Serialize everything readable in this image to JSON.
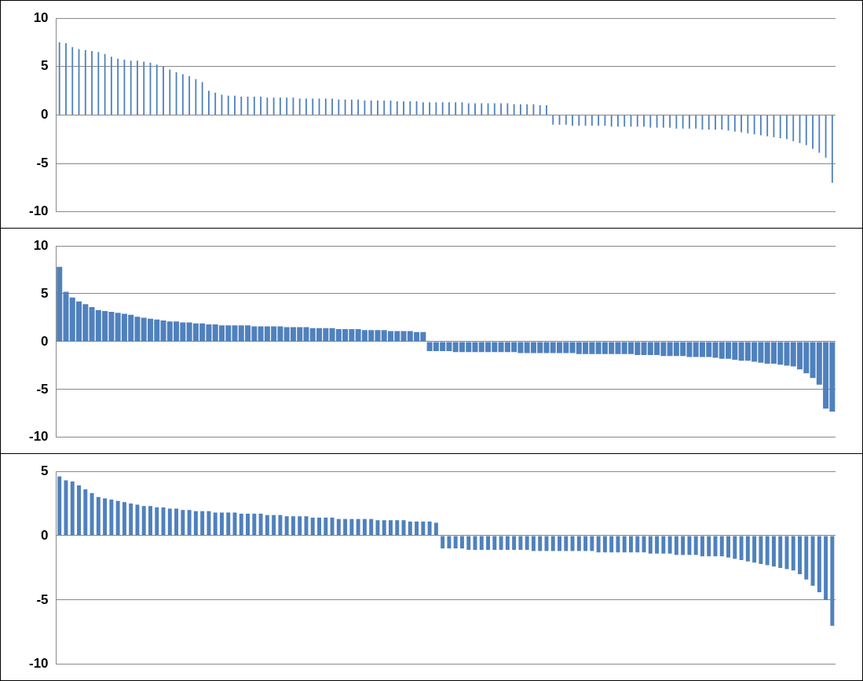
{
  "chart_data": [
    {
      "type": "bar",
      "categories": [
        null,
        null,
        null,
        null,
        null,
        null,
        null,
        null,
        null,
        null,
        null,
        null,
        null,
        null,
        null,
        null,
        null,
        null,
        null,
        null,
        null,
        null,
        null,
        null,
        null,
        null,
        null,
        null,
        null,
        null,
        null,
        null,
        null,
        null,
        null,
        null,
        null,
        null,
        null,
        null,
        null,
        null,
        null,
        null,
        null,
        null,
        null,
        null,
        null,
        null,
        null,
        null,
        null,
        null,
        null,
        null,
        null,
        null,
        null,
        null,
        null,
        null,
        null,
        null,
        null,
        null,
        null,
        null,
        null,
        null,
        null,
        null,
        null,
        null,
        null,
        null,
        null,
        null,
        null,
        null,
        null,
        null,
        null,
        null,
        null,
        null,
        null,
        null,
        null,
        null,
        null,
        null,
        null,
        null,
        null,
        null,
        null,
        null,
        null,
        null,
        null,
        null,
        null,
        null,
        null,
        null,
        null,
        null,
        null,
        null,
        null,
        null,
        null,
        null,
        null,
        null,
        null,
        null,
        null,
        null
      ],
      "values": [
        7.5,
        7.4,
        7.0,
        6.8,
        6.7,
        6.6,
        6.5,
        6.3,
        6.0,
        5.8,
        5.7,
        5.6,
        5.6,
        5.5,
        5.4,
        5.2,
        5.0,
        4.7,
        4.4,
        4.2,
        4.0,
        3.7,
        3.4,
        2.5,
        2.3,
        2.1,
        2.0,
        2.0,
        1.9,
        1.9,
        1.9,
        1.9,
        1.8,
        1.8,
        1.8,
        1.8,
        1.8,
        1.7,
        1.7,
        1.7,
        1.7,
        1.7,
        1.7,
        1.6,
        1.6,
        1.6,
        1.6,
        1.5,
        1.5,
        1.5,
        1.5,
        1.5,
        1.4,
        1.4,
        1.4,
        1.4,
        1.3,
        1.3,
        1.3,
        1.3,
        1.3,
        1.3,
        1.3,
        1.2,
        1.2,
        1.2,
        1.2,
        1.2,
        1.2,
        1.2,
        1.1,
        1.1,
        1.1,
        1.1,
        1.0,
        1.0,
        -1.0,
        -1.0,
        -1.0,
        -1.1,
        -1.1,
        -1.1,
        -1.1,
        -1.1,
        -1.1,
        -1.2,
        -1.2,
        -1.2,
        -1.2,
        -1.2,
        -1.2,
        -1.3,
        -1.3,
        -1.3,
        -1.3,
        -1.4,
        -1.4,
        -1.4,
        -1.4,
        -1.5,
        -1.5,
        -1.5,
        -1.5,
        -1.6,
        -1.7,
        -1.8,
        -1.9,
        -2.0,
        -2.1,
        -2.2,
        -2.3,
        -2.4,
        -2.5,
        -2.7,
        -2.9,
        -3.1,
        -3.5,
        -3.9,
        -4.4,
        -7.0
      ],
      "color": "#4f81bd",
      "ylim": [
        -10,
        10
      ],
      "yticks": [
        -10,
        -5,
        0,
        5,
        10
      ],
      "grid": true,
      "tick_labels": "y"
    },
    {
      "type": "bar",
      "categories": [
        null,
        null,
        null,
        null,
        null,
        null,
        null,
        null,
        null,
        null,
        null,
        null,
        null,
        null,
        null,
        null,
        null,
        null,
        null,
        null,
        null,
        null,
        null,
        null,
        null,
        null,
        null,
        null,
        null,
        null,
        null,
        null,
        null,
        null,
        null,
        null,
        null,
        null,
        null,
        null,
        null,
        null,
        null,
        null,
        null,
        null,
        null,
        null,
        null,
        null,
        null,
        null,
        null,
        null,
        null,
        null,
        null,
        null,
        null,
        null,
        null,
        null,
        null,
        null,
        null,
        null,
        null,
        null,
        null,
        null,
        null,
        null,
        null,
        null,
        null,
        null,
        null,
        null,
        null,
        null,
        null,
        null,
        null,
        null,
        null,
        null,
        null,
        null,
        null,
        null,
        null,
        null,
        null,
        null,
        null,
        null,
        null,
        null,
        null,
        null,
        null,
        null,
        null,
        null,
        null,
        null,
        null,
        null,
        null,
        null,
        null,
        null,
        null,
        null,
        null,
        null,
        null,
        null,
        null,
        null
      ],
      "values": [
        7.8,
        5.2,
        4.6,
        4.2,
        3.9,
        3.6,
        3.3,
        3.2,
        3.1,
        3.0,
        2.9,
        2.8,
        2.6,
        2.5,
        2.4,
        2.3,
        2.2,
        2.1,
        2.1,
        2.0,
        2.0,
        1.9,
        1.9,
        1.8,
        1.8,
        1.7,
        1.7,
        1.7,
        1.7,
        1.7,
        1.6,
        1.6,
        1.6,
        1.6,
        1.6,
        1.5,
        1.5,
        1.5,
        1.5,
        1.4,
        1.4,
        1.4,
        1.4,
        1.3,
        1.3,
        1.3,
        1.3,
        1.2,
        1.2,
        1.2,
        1.2,
        1.1,
        1.1,
        1.1,
        1.1,
        1.0,
        1.0,
        -1.0,
        -1.0,
        -1.0,
        -1.0,
        -1.1,
        -1.1,
        -1.1,
        -1.1,
        -1.1,
        -1.1,
        -1.1,
        -1.1,
        -1.1,
        -1.1,
        -1.2,
        -1.2,
        -1.2,
        -1.2,
        -1.2,
        -1.2,
        -1.2,
        -1.2,
        -1.2,
        -1.3,
        -1.3,
        -1.3,
        -1.3,
        -1.3,
        -1.3,
        -1.3,
        -1.3,
        -1.3,
        -1.4,
        -1.4,
        -1.4,
        -1.4,
        -1.5,
        -1.5,
        -1.5,
        -1.5,
        -1.6,
        -1.6,
        -1.6,
        -1.6,
        -1.7,
        -1.8,
        -1.8,
        -1.9,
        -2.0,
        -2.0,
        -2.1,
        -2.2,
        -2.3,
        -2.3,
        -2.4,
        -2.5,
        -2.6,
        -2.9,
        -3.3,
        -3.8,
        -4.5,
        -7.0,
        -7.3
      ],
      "color": "#4f81bd",
      "ylim": [
        -10,
        10
      ],
      "yticks": [
        -10,
        -5,
        0,
        5,
        10
      ],
      "grid": true,
      "tick_labels": "y"
    },
    {
      "type": "bar",
      "categories": [
        null,
        null,
        null,
        null,
        null,
        null,
        null,
        null,
        null,
        null,
        null,
        null,
        null,
        null,
        null,
        null,
        null,
        null,
        null,
        null,
        null,
        null,
        null,
        null,
        null,
        null,
        null,
        null,
        null,
        null,
        null,
        null,
        null,
        null,
        null,
        null,
        null,
        null,
        null,
        null,
        null,
        null,
        null,
        null,
        null,
        null,
        null,
        null,
        null,
        null,
        null,
        null,
        null,
        null,
        null,
        null,
        null,
        null,
        null,
        null,
        null,
        null,
        null,
        null,
        null,
        null,
        null,
        null,
        null,
        null,
        null,
        null,
        null,
        null,
        null,
        null,
        null,
        null,
        null,
        null,
        null,
        null,
        null,
        null,
        null,
        null,
        null,
        null,
        null,
        null,
        null,
        null,
        null,
        null,
        null,
        null,
        null,
        null,
        null,
        null,
        null,
        null,
        null,
        null,
        null,
        null,
        null,
        null,
        null,
        null,
        null,
        null,
        null,
        null,
        null,
        null,
        null,
        null,
        null,
        null
      ],
      "values": [
        4.6,
        4.3,
        4.2,
        3.9,
        3.6,
        3.3,
        3.0,
        2.9,
        2.8,
        2.7,
        2.6,
        2.5,
        2.4,
        2.3,
        2.3,
        2.2,
        2.2,
        2.1,
        2.1,
        2.0,
        2.0,
        1.9,
        1.9,
        1.9,
        1.8,
        1.8,
        1.8,
        1.8,
        1.7,
        1.7,
        1.7,
        1.7,
        1.6,
        1.6,
        1.6,
        1.5,
        1.5,
        1.5,
        1.5,
        1.4,
        1.4,
        1.4,
        1.4,
        1.3,
        1.3,
        1.3,
        1.3,
        1.3,
        1.3,
        1.2,
        1.2,
        1.2,
        1.2,
        1.2,
        1.1,
        1.1,
        1.1,
        1.1,
        1.0,
        -1.0,
        -1.0,
        -1.0,
        -1.0,
        -1.1,
        -1.1,
        -1.1,
        -1.1,
        -1.1,
        -1.1,
        -1.1,
        -1.1,
        -1.1,
        -1.1,
        -1.2,
        -1.2,
        -1.2,
        -1.2,
        -1.2,
        -1.2,
        -1.2,
        -1.2,
        -1.2,
        -1.2,
        -1.3,
        -1.3,
        -1.3,
        -1.3,
        -1.3,
        -1.3,
        -1.3,
        -1.3,
        -1.4,
        -1.4,
        -1.4,
        -1.4,
        -1.5,
        -1.5,
        -1.5,
        -1.5,
        -1.6,
        -1.6,
        -1.6,
        -1.6,
        -1.7,
        -1.8,
        -1.9,
        -2.0,
        -2.1,
        -2.2,
        -2.3,
        -2.4,
        -2.5,
        -2.6,
        -2.7,
        -3.0,
        -3.4,
        -3.9,
        -4.4,
        -5.0,
        -7.0
      ],
      "color": "#4f81bd",
      "ylim": [
        -10,
        5
      ],
      "yticks": [
        -10,
        -5,
        0,
        5
      ],
      "grid": true,
      "tick_labels": "y"
    }
  ]
}
